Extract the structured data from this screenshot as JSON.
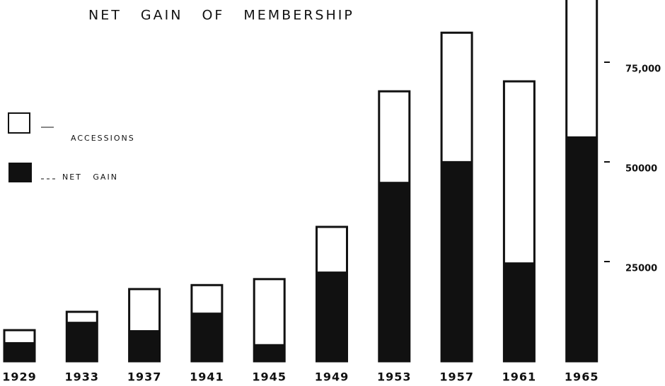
{
  "chart_data": {
    "type": "bar",
    "title": "NET GAIN OF MEMBERSHIP",
    "categories": [
      "1929",
      "1933",
      "1937",
      "1941",
      "1945",
      "1949",
      "1953",
      "1957",
      "1961",
      "1965"
    ],
    "series": [
      {
        "name": "ACCESSIONS",
        "color": "#ffffff",
        "values": [
          7800,
          12400,
          18100,
          19100,
          20600,
          33700,
          67700,
          82400,
          70200,
          92400
        ]
      },
      {
        "name": "NET GAIN",
        "color": "#111111",
        "values": [
          4800,
          9900,
          7800,
          12200,
          4300,
          22500,
          45000,
          50200,
          24800,
          56400
        ]
      }
    ],
    "ylim": [
      0,
      90000
    ],
    "yticks": [
      25000,
      50000,
      {
        "value": 75000,
        "label": "75,000"
      }
    ]
  }
}
